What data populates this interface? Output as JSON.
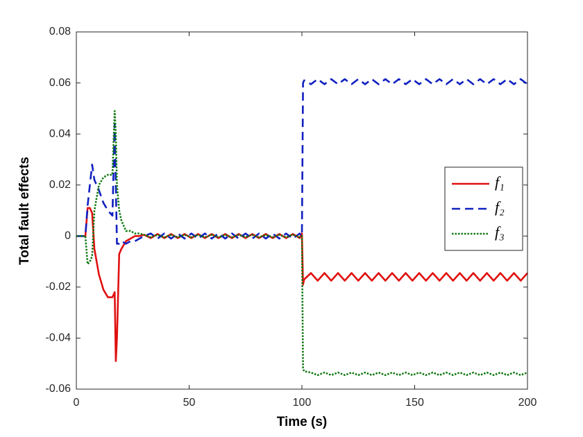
{
  "chart_data": {
    "type": "line",
    "xlabel": "Time (s)",
    "ylabel": "Total fault effects",
    "x": [
      0,
      4,
      5,
      6,
      7,
      8,
      10,
      12,
      14,
      16,
      17,
      17.5,
      18,
      19,
      20,
      22,
      24,
      26,
      28,
      30,
      33,
      36,
      39,
      42,
      45,
      48,
      51,
      54,
      57,
      60,
      63,
      66,
      69,
      72,
      75,
      78,
      81,
      84,
      87,
      90,
      93,
      96,
      99,
      100,
      100.5,
      101,
      104,
      107,
      110,
      113,
      116,
      119,
      122,
      125,
      128,
      131,
      134,
      137,
      140,
      143,
      146,
      149,
      152,
      155,
      158,
      161,
      164,
      167,
      170,
      173,
      176,
      179,
      182,
      185,
      188,
      191,
      194,
      197,
      200
    ],
    "series": [
      {
        "name": "f₁",
        "color": "#e01010",
        "style": "solid",
        "values": [
          0,
          0,
          0.011,
          0.011,
          0.009,
          -0.005,
          -0.015,
          -0.021,
          -0.024,
          -0.024,
          -0.022,
          -0.049,
          -0.04,
          -0.007,
          -0.005,
          -0.002,
          -0.001,
          0,
          0,
          0.0005,
          -0.0008,
          0.0008,
          -0.0008,
          0.0008,
          -0.0008,
          0.0008,
          -0.0008,
          0.0008,
          -0.0008,
          0.0008,
          -0.0008,
          0.0008,
          -0.0008,
          0.0008,
          -0.0008,
          0.0008,
          -0.0008,
          0.0008,
          -0.0008,
          0.0008,
          -0.0008,
          0.0008,
          -0.0008,
          0.001,
          -0.019,
          -0.017,
          -0.0145,
          -0.0175,
          -0.0145,
          -0.0175,
          -0.0145,
          -0.0175,
          -0.0145,
          -0.0175,
          -0.0145,
          -0.0175,
          -0.0145,
          -0.0175,
          -0.0145,
          -0.0175,
          -0.0145,
          -0.0175,
          -0.0145,
          -0.0175,
          -0.0145,
          -0.0175,
          -0.0145,
          -0.0175,
          -0.0145,
          -0.0175,
          -0.0145,
          -0.0175,
          -0.0145,
          -0.0175,
          -0.0145,
          -0.0175,
          -0.0145,
          -0.0175,
          -0.0145
        ]
      },
      {
        "name": "f₂",
        "color": "#1020c0",
        "style": "dashed",
        "values": [
          0,
          0,
          0.012,
          0.02,
          0.028,
          0.022,
          0.018,
          0.013,
          0.01,
          0.008,
          0.044,
          0.02,
          -0.003,
          -0.003,
          -0.002,
          -0.003,
          -0.002,
          -0.002,
          -0.001,
          0,
          0.001,
          -0.001,
          0.001,
          -0.001,
          0.001,
          -0.001,
          0.001,
          -0.001,
          0.001,
          -0.001,
          0.001,
          -0.001,
          0.001,
          -0.001,
          0.001,
          -0.001,
          0.001,
          -0.001,
          0.001,
          -0.001,
          0.001,
          -0.001,
          0.001,
          0,
          0.06,
          0.061,
          0.0595,
          0.0615,
          0.0595,
          0.0615,
          0.0595,
          0.0615,
          0.0595,
          0.0615,
          0.0595,
          0.0615,
          0.0595,
          0.0615,
          0.0595,
          0.0615,
          0.0595,
          0.0615,
          0.0595,
          0.0615,
          0.0595,
          0.0615,
          0.0595,
          0.0615,
          0.0595,
          0.0615,
          0.0595,
          0.0615,
          0.0595,
          0.0615,
          0.0595,
          0.0615,
          0.0595,
          0.0615,
          0.0595
        ]
      },
      {
        "name": "f₃",
        "color": "#107810",
        "style": "dotted",
        "values": [
          0,
          0,
          -0.011,
          -0.01,
          -0.008,
          0.01,
          0.02,
          0.023,
          0.024,
          0.024,
          0.049,
          0.04,
          0.02,
          0.01,
          0.006,
          0.002,
          0.002,
          0.001,
          0.001,
          0.0005,
          -0.0005,
          0.0005,
          -0.0005,
          0.0005,
          -0.0005,
          0.0005,
          -0.0005,
          0.0005,
          -0.0005,
          0.0005,
          -0.0005,
          0.0005,
          -0.0005,
          0.0005,
          -0.0005,
          0.0005,
          -0.0005,
          0.0005,
          -0.0005,
          0.0005,
          -0.0005,
          0.0005,
          -0.0005,
          0,
          -0.052,
          -0.053,
          -0.0535,
          -0.0545,
          -0.0535,
          -0.0545,
          -0.0535,
          -0.0545,
          -0.0535,
          -0.0545,
          -0.0535,
          -0.0545,
          -0.0535,
          -0.0545,
          -0.0535,
          -0.0545,
          -0.0535,
          -0.0545,
          -0.0535,
          -0.0545,
          -0.0535,
          -0.0545,
          -0.0535,
          -0.0545,
          -0.0535,
          -0.0545,
          -0.0535,
          -0.0545,
          -0.0535,
          -0.0545,
          -0.0535,
          -0.0545,
          -0.0535,
          -0.0545,
          -0.0535
        ]
      }
    ],
    "xlim": [
      0,
      200
    ],
    "xticks": [
      0,
      50,
      100,
      150,
      200
    ],
    "ylim": [
      -0.06,
      0.08
    ],
    "yticks": [
      -0.06,
      -0.04,
      -0.02,
      0,
      0.02,
      0.04,
      0.06,
      0.08
    ],
    "grid": false,
    "legend": "right"
  }
}
